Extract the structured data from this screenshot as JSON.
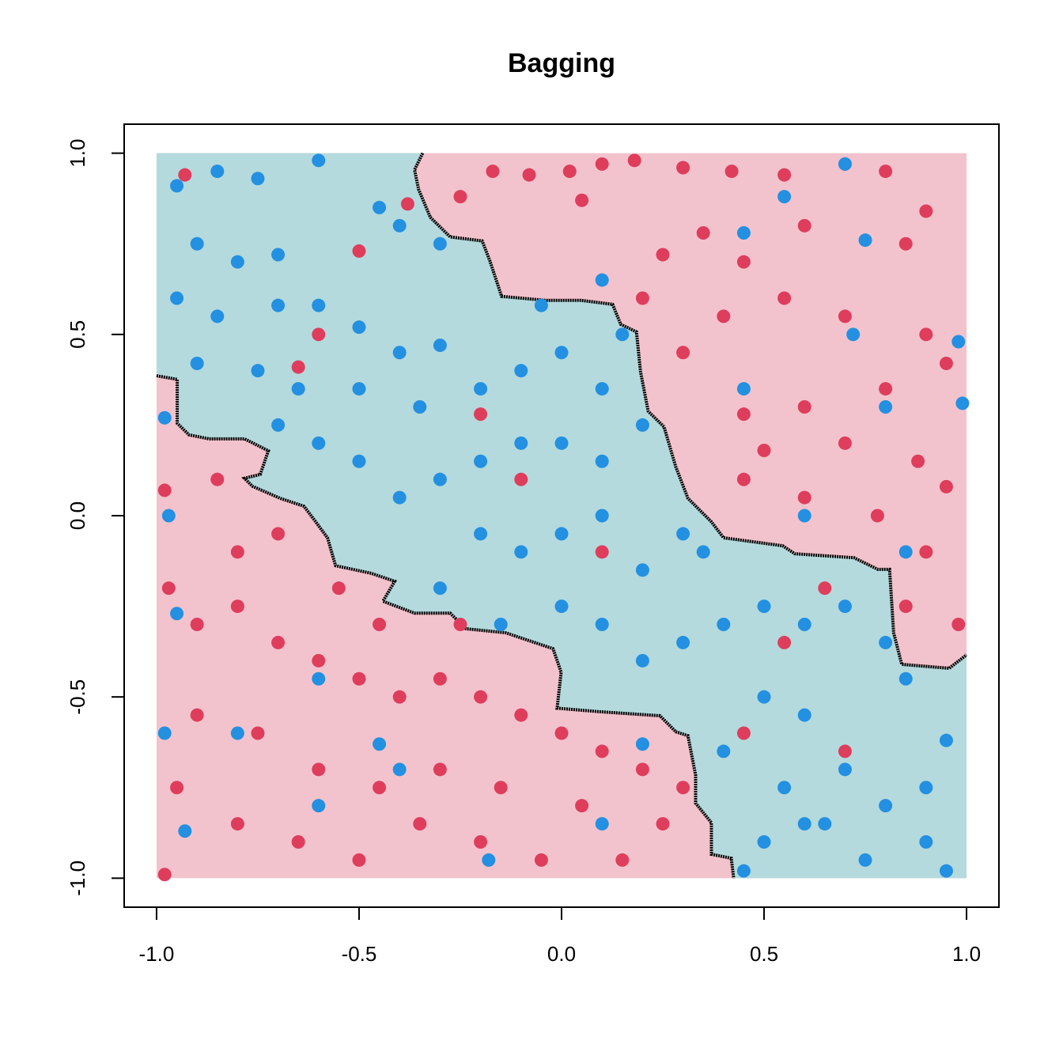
{
  "chart_data": {
    "type": "scatter",
    "title": "Bagging",
    "xlim": [
      -1.08,
      1.08
    ],
    "ylim": [
      -1.08,
      1.08
    ],
    "xticks": [
      {
        "value": -1,
        "label": "-1.0"
      },
      -0.5,
      {
        "value": 0,
        "label": "0.0"
      },
      0.5,
      {
        "value": 1,
        "label": "1.0"
      }
    ],
    "yticks": [
      {
        "value": -1,
        "label": "-1.0"
      },
      -0.5,
      {
        "value": 0,
        "label": "0.0"
      },
      0.5,
      {
        "value": 1,
        "label": "1.0"
      }
    ],
    "region_colors": [
      "#f3c3cd",
      "#b4dadd"
    ],
    "boundary_color": "#000000",
    "boundaries": [
      {
        "x": [
          -0.343,
          -0.363,
          -0.353,
          -0.324,
          -0.275,
          -0.196,
          -0.177,
          -0.148,
          -0.04,
          0.048,
          0.126,
          0.146,
          0.185,
          0.195,
          0.214,
          0.253,
          0.282,
          0.312,
          0.37,
          0.4,
          0.546,
          0.576,
          0.722,
          0.781,
          0.81,
          0.82,
          0.84,
          0.957,
          1.0
        ],
        "y": [
          1.0,
          0.954,
          0.9,
          0.823,
          0.769,
          0.758,
          0.703,
          0.605,
          0.594,
          0.594,
          0.583,
          0.528,
          0.507,
          0.397,
          0.288,
          0.245,
          0.135,
          0.048,
          -0.017,
          -0.061,
          -0.083,
          -0.105,
          -0.116,
          -0.148,
          -0.148,
          -0.323,
          -0.41,
          -0.421,
          -0.384
        ]
      },
      {
        "x": [
          -1.0,
          -0.949,
          -0.949,
          -0.92,
          -0.871,
          -0.783,
          -0.724,
          -0.744,
          -0.783,
          -0.763,
          -0.695,
          -0.636,
          -0.607,
          -0.578,
          -0.558,
          -0.47,
          -0.412,
          -0.441,
          -0.363,
          -0.275,
          -0.236,
          -0.138,
          -0.021,
          -0.001,
          -0.011,
          0.097,
          0.243,
          0.282,
          0.312,
          0.331,
          0.331,
          0.37,
          0.37,
          0.419,
          0.425
        ],
        "y": [
          0.386,
          0.376,
          0.255,
          0.223,
          0.212,
          0.212,
          0.179,
          0.114,
          0.103,
          0.081,
          0.048,
          0.026,
          -0.017,
          -0.061,
          -0.138,
          -0.159,
          -0.181,
          -0.236,
          -0.269,
          -0.269,
          -0.312,
          -0.323,
          -0.367,
          -0.432,
          -0.531,
          -0.541,
          -0.552,
          -0.596,
          -0.607,
          -0.716,
          -0.793,
          -0.847,
          -0.934,
          -0.945,
          -1.0
        ]
      }
    ],
    "series": [
      {
        "color": "#df3d5c",
        "x": [
          -0.17,
          -0.08,
          0.02,
          0.1,
          0.18,
          0.3,
          0.42,
          0.55,
          0.7,
          0.8,
          0.9,
          0.85,
          0.6,
          0.45,
          0.35,
          0.25,
          0.2,
          0.4,
          0.55,
          0.7,
          0.9,
          0.95,
          0.8,
          0.6,
          0.45,
          0.5,
          0.7,
          0.88,
          0.95,
          0.78,
          0.6,
          0.45,
          0.9,
          0.98,
          0.85,
          0.3,
          0.05,
          -0.25,
          -0.98,
          -0.97,
          -0.9,
          -0.8,
          -0.7,
          -0.6,
          -0.5,
          -0.4,
          -0.3,
          -0.2,
          -0.1,
          0.0,
          0.1,
          0.2,
          0.25,
          -0.05,
          -0.2,
          -0.35,
          -0.5,
          -0.65,
          -0.8,
          -0.95,
          -0.9,
          -0.75,
          -0.6,
          -0.45,
          -0.3,
          -0.15,
          0.05,
          -0.85,
          -0.7,
          -0.8,
          -0.55,
          -0.45,
          -0.25,
          0.15,
          0.3,
          -0.98,
          -0.93,
          -0.5,
          -0.38,
          -0.65,
          -0.6,
          0.55,
          0.45,
          0.7,
          -0.2,
          -0.1,
          0.1,
          0.65
        ],
        "y": [
          0.95,
          0.94,
          0.95,
          0.97,
          0.98,
          0.96,
          0.95,
          0.94,
          0.97,
          0.95,
          0.84,
          0.75,
          0.8,
          0.7,
          0.78,
          0.72,
          0.6,
          0.55,
          0.6,
          0.55,
          0.5,
          0.42,
          0.35,
          0.3,
          0.28,
          0.18,
          0.2,
          0.15,
          0.08,
          0.0,
          0.05,
          0.1,
          -0.1,
          -0.3,
          -0.25,
          0.45,
          0.87,
          0.88,
          0.07,
          -0.2,
          -0.3,
          -0.25,
          -0.35,
          -0.4,
          -0.45,
          -0.5,
          -0.45,
          -0.5,
          -0.55,
          -0.6,
          -0.65,
          -0.7,
          -0.85,
          -0.95,
          -0.9,
          -0.85,
          -0.95,
          -0.9,
          -0.85,
          -0.75,
          -0.55,
          -0.6,
          -0.7,
          -0.75,
          -0.7,
          -0.75,
          -0.8,
          0.1,
          -0.05,
          -0.1,
          -0.2,
          -0.3,
          -0.3,
          -0.95,
          -0.75,
          -0.99,
          0.94,
          0.73,
          0.86,
          0.41,
          0.5,
          -0.35,
          -0.6,
          -0.65,
          0.28,
          0.1,
          -0.1,
          -0.2
        ]
      },
      {
        "color": "#2390e2",
        "x": [
          -0.95,
          -0.85,
          -0.75,
          -0.6,
          -0.45,
          -0.4,
          -0.3,
          -0.9,
          -0.8,
          -0.7,
          -0.95,
          -0.85,
          -0.7,
          -0.6,
          -0.5,
          -0.4,
          -0.3,
          -0.9,
          -0.75,
          -0.65,
          -0.5,
          -0.35,
          -0.2,
          -0.1,
          0.0,
          0.1,
          0.2,
          0.1,
          0.0,
          -0.1,
          -0.2,
          -0.3,
          -0.4,
          -0.5,
          -0.6,
          -0.7,
          -0.2,
          -0.1,
          0.0,
          0.1,
          0.2,
          0.3,
          0.0,
          0.1,
          0.2,
          0.3,
          0.4,
          0.5,
          0.6,
          0.7,
          0.8,
          0.85,
          0.5,
          0.6,
          0.4,
          0.55,
          0.7,
          0.8,
          0.9,
          0.95,
          0.5,
          0.65,
          0.75,
          0.9,
          0.95,
          0.45,
          0.35,
          -0.3,
          -0.15,
          0.1,
          0.15,
          -0.05,
          0.45,
          0.55,
          0.7,
          0.75,
          0.72,
          0.98,
          0.99,
          0.45,
          0.8,
          0.6,
          0.85,
          -0.98,
          -0.97,
          -0.95,
          -0.8,
          -0.6,
          -0.6,
          -0.45,
          -0.98,
          -0.93,
          -0.18,
          0.1,
          -0.4,
          0.2,
          0.6
        ],
        "y": [
          0.91,
          0.95,
          0.93,
          0.98,
          0.85,
          0.8,
          0.75,
          0.75,
          0.7,
          0.72,
          0.6,
          0.55,
          0.58,
          0.58,
          0.52,
          0.45,
          0.47,
          0.42,
          0.4,
          0.35,
          0.35,
          0.3,
          0.35,
          0.4,
          0.45,
          0.35,
          0.25,
          0.15,
          0.2,
          0.2,
          0.15,
          0.1,
          0.05,
          0.15,
          0.2,
          0.25,
          -0.05,
          -0.1,
          -0.05,
          0.0,
          -0.15,
          -0.05,
          -0.25,
          -0.3,
          -0.4,
          -0.35,
          -0.3,
          -0.25,
          -0.3,
          -0.25,
          -0.35,
          -0.45,
          -0.5,
          -0.55,
          -0.65,
          -0.75,
          -0.7,
          -0.8,
          -0.75,
          -0.62,
          -0.9,
          -0.85,
          -0.95,
          -0.9,
          -0.98,
          -0.98,
          -0.1,
          -0.2,
          -0.3,
          0.65,
          0.5,
          0.58,
          0.78,
          0.88,
          0.97,
          0.76,
          0.5,
          0.48,
          0.31,
          0.35,
          0.3,
          0.0,
          -0.1,
          0.27,
          0.0,
          -0.27,
          -0.6,
          -0.45,
          -0.8,
          -0.63,
          -0.6,
          -0.87,
          -0.95,
          -0.85,
          -0.7,
          -0.63,
          -0.85
        ]
      }
    ]
  }
}
